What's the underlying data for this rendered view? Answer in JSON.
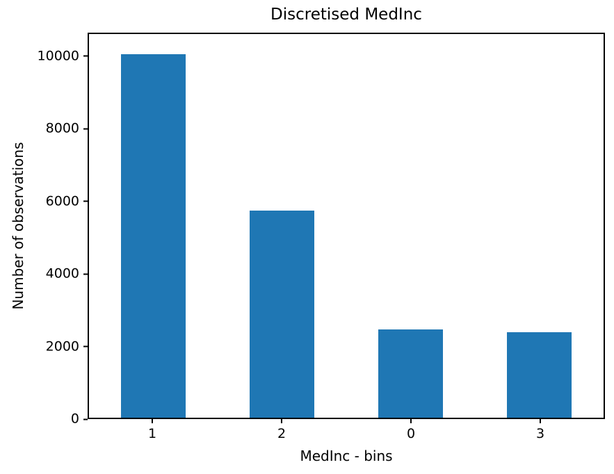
{
  "figure": {
    "background": "#ffffff",
    "text_color": "#000000",
    "spine_color": "#000000"
  },
  "chart_data": {
    "type": "bar",
    "title": "Discretised MedInc",
    "xlabel": "MedInc - bins",
    "ylabel": "Number of observations",
    "categories": [
      "1",
      "2",
      "0",
      "3"
    ],
    "values": [
      10100,
      5750,
      2450,
      2370
    ],
    "ylim": [
      0,
      10650
    ],
    "yticks": [
      0,
      2000,
      4000,
      6000,
      8000,
      10000
    ],
    "bar_color": "#1f77b4",
    "bar_width_fraction": 0.5,
    "grid": "off",
    "legend": "none"
  }
}
